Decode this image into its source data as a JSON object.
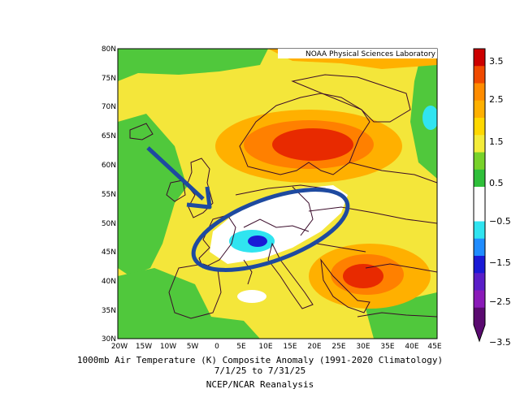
{
  "credit": "NOAA Physical Sciences Laboratory",
  "title": "1000mb Air Temperature (K) Composite Anomaly (1991-2020 Climatology)",
  "date_range": "7/1/25  to 7/31/25",
  "source": "NCEP/NCAR Reanalysis",
  "lat_ticks": [
    "80N",
    "75N",
    "70N",
    "65N",
    "60N",
    "55N",
    "50N",
    "45N",
    "40N",
    "35N",
    "30N"
  ],
  "lon_ticks": [
    "20W",
    "15W",
    "10W",
    "5W",
    "0",
    "5E",
    "10E",
    "15E",
    "20E",
    "25E",
    "30E",
    "35E",
    "40E",
    "45E"
  ],
  "colorbar": {
    "labels": [
      "3.5",
      "2.5",
      "1.5",
      "0.5",
      "−0.5",
      "−1.5",
      "−2.5",
      "−3.5"
    ],
    "colors": [
      "#cc0000",
      "#f04a00",
      "#ff8c00",
      "#ffb000",
      "#ffd800",
      "#f4ec3a",
      "#78d22a",
      "#2fbf3a",
      "#ffffff",
      "#ffffff",
      "#30e4f0",
      "#1f8cff",
      "#1a1ad6",
      "#5a1ec8",
      "#8a1ab8",
      "#5a0a70"
    ]
  },
  "colors": {
    "warm1": "#f4e63a",
    "warm2": "#ffb000",
    "warm3": "#ff8000",
    "warm4": "#e82a00",
    "mild_green": "#50c83c",
    "neutral": "#ffffff",
    "cool1": "#30e4f0",
    "cool2": "#1a1ad6",
    "annotation": "#1e4aa0"
  }
}
